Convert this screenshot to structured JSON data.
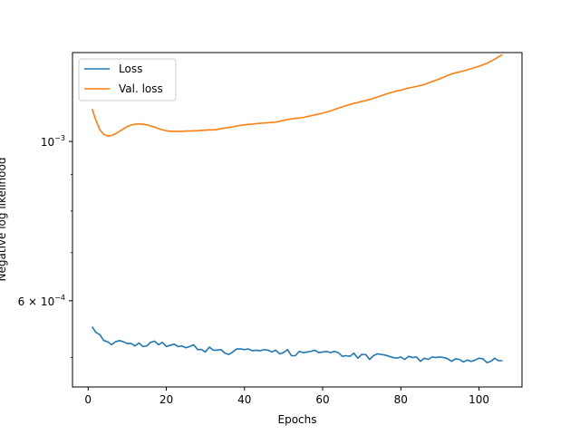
{
  "chart_data": {
    "type": "line",
    "xlabel": "Epochs",
    "ylabel": "Negative log likelihood",
    "yscale": "log",
    "xlim": [
      -4,
      111
    ],
    "ylim": [
      0.000455,
      0.00133
    ],
    "x_ticks": [
      {
        "value": 0,
        "label": "0"
      },
      {
        "value": 20,
        "label": "20"
      },
      {
        "value": 40,
        "label": "40"
      },
      {
        "value": 60,
        "label": "60"
      },
      {
        "value": 80,
        "label": "80"
      },
      {
        "value": 100,
        "label": "100"
      }
    ],
    "y_ticks": [
      {
        "value": 0.001,
        "label": "10",
        "sup": "−3",
        "prefix": ""
      },
      {
        "value": 0.0006,
        "label": "10",
        "sup": "−4",
        "prefix": "6 × "
      }
    ],
    "grid": false,
    "legend_position": "top-left",
    "series": [
      {
        "name": "Loss",
        "color": "#1f77b4",
        "x": [
          1,
          2,
          3,
          4,
          5,
          6,
          7,
          8,
          9,
          10,
          11,
          12,
          13,
          14,
          15,
          16,
          17,
          18,
          19,
          20,
          21,
          22,
          23,
          24,
          25,
          26,
          27,
          28,
          29,
          30,
          31,
          32,
          33,
          34,
          35,
          36,
          37,
          38,
          39,
          40,
          41,
          42,
          43,
          44,
          45,
          46,
          47,
          48,
          49,
          50,
          51,
          52,
          53,
          54,
          55,
          56,
          57,
          58,
          59,
          60,
          61,
          62,
          63,
          64,
          65,
          66,
          67,
          68,
          69,
          70,
          71,
          72,
          73,
          74,
          75,
          76,
          77,
          78,
          79,
          80,
          81,
          82,
          83,
          84,
          85,
          86,
          87,
          88,
          89,
          90,
          91,
          92,
          93,
          94,
          95,
          96,
          97,
          98,
          99,
          100,
          101,
          102,
          103,
          104,
          105,
          106
        ],
        "values": [
          0.000552,
          0.000542,
          0.000538,
          0.000528,
          0.000526,
          0.000521,
          0.000526,
          0.000528,
          0.000526,
          0.000523,
          0.000523,
          0.000519,
          0.000524,
          0.000518,
          0.000519,
          0.000525,
          0.000527,
          0.000521,
          0.000525,
          0.000518,
          0.00052,
          0.000522,
          0.000518,
          0.000519,
          0.000516,
          0.000518,
          0.000521,
          0.000513,
          0.000513,
          0.000509,
          0.000517,
          0.000512,
          0.000512,
          0.000513,
          0.000507,
          0.000505,
          0.000509,
          0.000514,
          0.000514,
          0.000513,
          0.000514,
          0.000511,
          0.000512,
          0.000511,
          0.000513,
          0.000512,
          0.000509,
          0.000512,
          0.000506,
          0.000508,
          0.000513,
          0.000503,
          0.000503,
          0.00051,
          0.000508,
          0.000509,
          0.00051,
          0.000512,
          0.000508,
          0.000509,
          0.00051,
          0.000508,
          0.00051,
          0.000508,
          0.000502,
          0.000503,
          0.000502,
          0.000507,
          0.000499,
          0.000505,
          0.000505,
          0.000497,
          0.000503,
          0.000506,
          0.000505,
          0.000504,
          0.000502,
          0.0005,
          0.000499,
          0.000501,
          0.000497,
          0.000502,
          0.0005,
          0.000501,
          0.000494,
          0.000499,
          0.000497,
          0.000501,
          0.0005,
          0.000501,
          0.0005,
          0.000498,
          0.000494,
          0.000498,
          0.000497,
          0.000493,
          0.000496,
          0.000494,
          0.000496,
          0.000499,
          0.000498,
          0.000492,
          0.000494,
          0.000499,
          0.000495,
          0.000495
        ]
      },
      {
        "name": "Val. loss",
        "color": "#ff7f0e",
        "x": [
          1,
          2,
          3,
          4,
          5,
          6,
          7,
          8,
          9,
          10,
          11,
          12,
          13,
          14,
          15,
          16,
          17,
          18,
          19,
          20,
          21,
          22,
          23,
          24,
          25,
          26,
          27,
          28,
          29,
          30,
          31,
          32,
          33,
          34,
          35,
          36,
          37,
          38,
          39,
          40,
          41,
          42,
          43,
          44,
          45,
          46,
          47,
          48,
          49,
          50,
          51,
          52,
          53,
          54,
          55,
          56,
          57,
          58,
          59,
          60,
          61,
          62,
          63,
          64,
          65,
          66,
          67,
          68,
          69,
          70,
          71,
          72,
          73,
          74,
          75,
          76,
          77,
          78,
          79,
          80,
          81,
          82,
          83,
          84,
          85,
          86,
          87,
          88,
          89,
          90,
          91,
          92,
          93,
          94,
          95,
          96,
          97,
          98,
          99,
          100,
          101,
          102,
          103,
          104,
          105,
          106
        ],
        "values": [
          0.00111,
          0.00107,
          0.001038,
          0.001023,
          0.001018,
          0.001019,
          0.001025,
          0.001033,
          0.001041,
          0.001049,
          0.001054,
          0.001057,
          0.001058,
          0.001057,
          0.001055,
          0.001051,
          0.001047,
          0.001042,
          0.001038,
          0.001035,
          0.001033,
          0.001033,
          0.001033,
          0.001033,
          0.001034,
          0.001034,
          0.001035,
          0.001035,
          0.001036,
          0.001037,
          0.001038,
          0.001038,
          0.001039,
          0.001042,
          0.001044,
          0.001046,
          0.001048,
          0.001051,
          0.001053,
          0.001055,
          0.001056,
          0.001057,
          0.001059,
          0.00106,
          0.001061,
          0.001062,
          0.001063,
          0.001064,
          0.001067,
          0.00107,
          0.001073,
          0.001075,
          0.001077,
          0.001078,
          0.00108,
          0.001083,
          0.001086,
          0.001089,
          0.001092,
          0.001095,
          0.001099,
          0.001103,
          0.001108,
          0.001113,
          0.001117,
          0.001122,
          0.001126,
          0.00113,
          0.001133,
          0.001137,
          0.00114,
          0.001144,
          0.001149,
          0.001153,
          0.001158,
          0.001163,
          0.001168,
          0.001172,
          0.001176,
          0.001179,
          0.001183,
          0.001187,
          0.00119,
          0.001193,
          0.001197,
          0.0012,
          0.001206,
          0.001212,
          0.001217,
          0.001223,
          0.001229,
          0.001236,
          0.001242,
          0.001246,
          0.00125,
          0.001254,
          0.001258,
          0.001263,
          0.001268,
          0.001273,
          0.001279,
          0.001285,
          0.001293,
          0.001302,
          0.001312,
          0.001321
        ]
      }
    ]
  }
}
